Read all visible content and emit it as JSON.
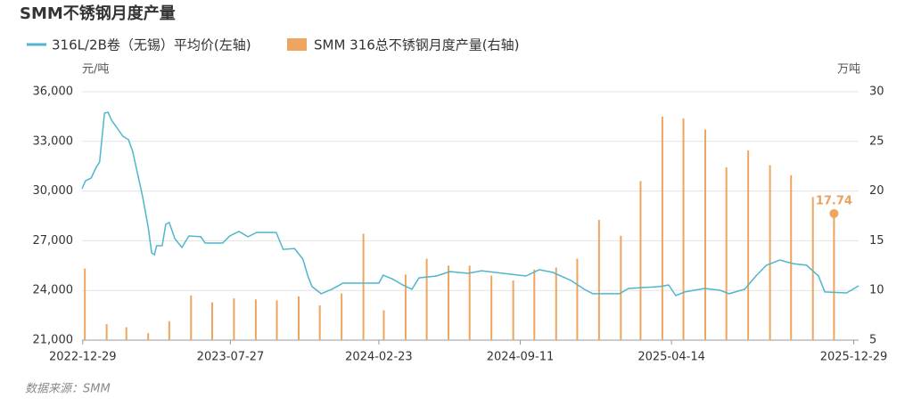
{
  "chart_data": {
    "type": "bar-line",
    "title": "SMM不锈钢月度产量",
    "y_unit": "元/吨",
    "y2_unit": "万吨",
    "source": "数据来源：SMM",
    "xlim": [
      "2022-12-28",
      "2026-01-05"
    ],
    "xticks": [
      "2022-12-29",
      "2023-07-27",
      "2024-02-23",
      "2024-09-11",
      "2025-04-14",
      "2025-12-29"
    ],
    "ylim": [
      21000,
      36000
    ],
    "yticks": [
      {
        "value": 21000,
        "label": "21,000"
      },
      {
        "value": 24000,
        "label": "24,000"
      },
      {
        "value": 27000,
        "label": "27,000"
      },
      {
        "value": 30000,
        "label": "30,000"
      },
      {
        "value": 33000,
        "label": "33,000"
      },
      {
        "value": 36000,
        "label": "36,000"
      }
    ],
    "y2lim": [
      5,
      30
    ],
    "y2ticks": [
      5,
      10,
      15,
      20,
      25,
      30
    ],
    "grid": true,
    "series": [
      {
        "name": "316L/2B卷（无锡）平均价(左轴)",
        "type": "line",
        "color": "#4fb6cc",
        "axis": "y",
        "x": [
          "2022-12-28",
          "2023-01-02",
          "2023-01-10",
          "2023-01-17",
          "2023-01-22",
          "2023-01-29",
          "2023-02-03",
          "2023-02-08",
          "2023-02-17",
          "2023-02-24",
          "2023-03-04",
          "2023-03-10",
          "2023-03-17",
          "2023-03-24",
          "2023-04-01",
          "2023-04-06",
          "2023-04-10",
          "2023-04-13",
          "2023-04-21",
          "2023-04-26",
          "2023-05-01",
          "2023-05-09",
          "2023-05-19",
          "2023-05-29",
          "2023-06-15",
          "2023-06-21",
          "2023-07-16",
          "2023-07-26",
          "2023-08-08",
          "2023-08-21",
          "2023-09-02",
          "2023-09-30",
          "2023-10-10",
          "2023-10-26",
          "2023-11-07",
          "2023-11-14",
          "2023-11-20",
          "2023-12-03",
          "2023-12-18",
          "2024-01-03",
          "2024-02-23",
          "2024-02-29",
          "2024-03-13",
          "2024-03-28",
          "2024-04-10",
          "2024-04-20",
          "2024-05-15",
          "2024-06-03",
          "2024-06-29",
          "2024-07-18",
          "2024-08-18",
          "2024-09-19",
          "2024-10-08",
          "2024-10-27",
          "2024-11-22",
          "2024-12-11",
          "2024-12-23",
          "2025-01-30",
          "2025-02-12",
          "2025-03-28",
          "2025-04-10",
          "2025-04-20",
          "2025-05-03",
          "2025-05-31",
          "2025-06-22",
          "2025-07-05",
          "2025-07-27",
          "2025-08-12",
          "2025-08-27",
          "2025-09-15",
          "2025-10-04",
          "2025-10-23",
          "2025-11-09",
          "2025-11-18",
          "2025-12-19",
          "2026-01-05"
        ],
        "values": [
          30140,
          30620,
          30790,
          31430,
          31750,
          34710,
          34760,
          34280,
          33740,
          33310,
          33100,
          32400,
          31050,
          29710,
          27830,
          26270,
          26160,
          26700,
          26700,
          27990,
          28100,
          27130,
          26590,
          27290,
          27240,
          26860,
          26860,
          27290,
          27560,
          27240,
          27500,
          27500,
          26480,
          26530,
          25890,
          24870,
          24230,
          23800,
          24070,
          24440,
          24440,
          24920,
          24700,
          24330,
          24070,
          24760,
          24870,
          25140,
          25030,
          25190,
          25030,
          24870,
          25250,
          25090,
          24600,
          24070,
          23800,
          23800,
          24120,
          24230,
          24330,
          23690,
          23910,
          24120,
          24010,
          23800,
          24070,
          24870,
          25520,
          25840,
          25620,
          25520,
          24870,
          23910,
          23850,
          24280
        ]
      },
      {
        "name": "SMM 316总不锈钢月度产量(右轴)",
        "type": "bar",
        "color": "#eea55f",
        "axis": "y2",
        "x": [
          "2023-01",
          "2023-02",
          "2023-03",
          "2023-04",
          "2023-05",
          "2023-06",
          "2023-07",
          "2023-08",
          "2023-09",
          "2023-10",
          "2023-11",
          "2023-12",
          "2024-01",
          "2024-02",
          "2024-03",
          "2024-04",
          "2024-05",
          "2024-06",
          "2024-07",
          "2024-08",
          "2024-09",
          "2024-10",
          "2024-11",
          "2024-12",
          "2025-01",
          "2025-02",
          "2025-03",
          "2025-04",
          "2025-05",
          "2025-06",
          "2025-07",
          "2025-08",
          "2025-09",
          "2025-10",
          "2025-11",
          "2025-12"
        ],
        "values": [
          12.2,
          6.6,
          6.3,
          5.7,
          6.9,
          9.5,
          8.8,
          9.2,
          9.1,
          9.0,
          9.4,
          8.5,
          9.7,
          15.7,
          8.0,
          11.6,
          13.2,
          12.5,
          12.5,
          11.5,
          11.0,
          12.1,
          12.3,
          13.2,
          17.1,
          15.5,
          21.0,
          27.5,
          27.3,
          26.2,
          22.4,
          24.1,
          22.6,
          21.6,
          19.4,
          17.74
        ],
        "value_labels": [
          null,
          null,
          null,
          null,
          null,
          null,
          null,
          null,
          null,
          null,
          null,
          null,
          null,
          null,
          null,
          null,
          null,
          null,
          null,
          null,
          null,
          null,
          null,
          null,
          null,
          null,
          null,
          null,
          null,
          null,
          null,
          null,
          null,
          null,
          null,
          "17.74"
        ]
      }
    ]
  }
}
